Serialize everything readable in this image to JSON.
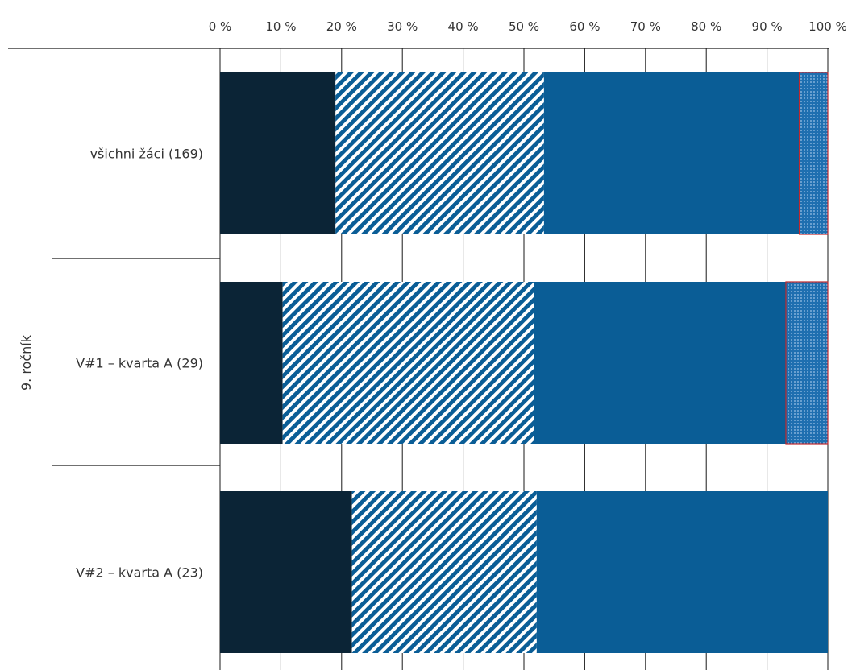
{
  "chart_data": {
    "type": "bar",
    "orientation": "horizontal",
    "stacked": true,
    "percent_axis": true,
    "xlim": [
      0,
      100
    ],
    "x_ticks": [
      "0 %",
      "10 %",
      "20 %",
      "30 %",
      "40 %",
      "50 %",
      "60 %",
      "70 %",
      "80 %",
      "90 %",
      "100 %"
    ],
    "x_axis_position": "top",
    "grid": true,
    "group_label": "9. ročník",
    "categories": [
      "všichni žáci (169)",
      "V#1 – kvarta A (29)",
      "V#2 – kvarta A (23)"
    ],
    "series": [
      {
        "values": [
          19,
          10.3,
          21.7
        ],
        "color": "#0b2436",
        "pattern": "solid"
      },
      {
        "values": [
          34.3,
          41.4,
          30.4
        ],
        "color": "#0a5d96",
        "pattern": "diagonal-stripes"
      },
      {
        "values": [
          42.0,
          41.4,
          47.9
        ],
        "color": "#0a5d96",
        "pattern": "solid"
      },
      {
        "values": [
          4.7,
          6.9,
          0
        ],
        "color": "#1f6fb0",
        "pattern": "dotted",
        "border_color": "#c0282d"
      }
    ],
    "legend": "none"
  }
}
